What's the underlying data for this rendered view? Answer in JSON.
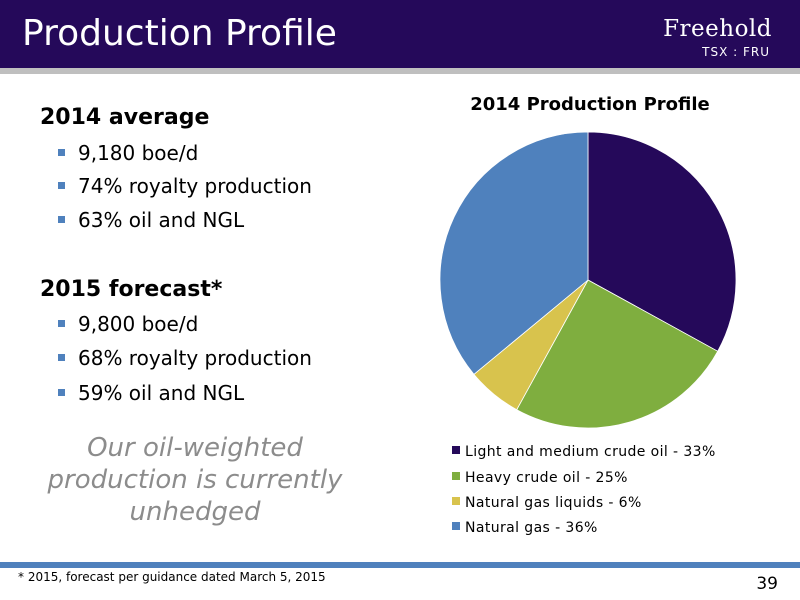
{
  "header": {
    "title": "Production Profile",
    "logo_name": "Freehold",
    "logo_ticker": "TSX : FRU",
    "background_color": "#25095a"
  },
  "left_panel": {
    "sections": [
      {
        "heading": "2014 average",
        "bullets": [
          "9,180 boe/d",
          "74% royalty production",
          "63% oil and NGL"
        ]
      },
      {
        "heading": "2015 forecast*",
        "bullets": [
          "9,800 boe/d",
          "68% royalty production",
          "59% oil and NGL"
        ]
      }
    ],
    "tagline": "Our oil-weighted production is currently unhedged"
  },
  "chart_data": {
    "type": "pie",
    "title": "2014 Production Profile",
    "categories": [
      "Light and medium crude oil",
      "Heavy crude oil",
      "Natural gas liquids",
      "Natural gas"
    ],
    "values": [
      33,
      25,
      6,
      36
    ],
    "colors": [
      "#25095a",
      "#7fae3f",
      "#d8c34d",
      "#4f81bd"
    ],
    "legend_labels": [
      "Light and medium crude oil - 33%",
      "Heavy crude oil - 25%",
      "Natural gas liquids - 6%",
      "Natural gas - 36%"
    ],
    "legend_position": "bottom"
  },
  "footer": {
    "footnote": "* 2015, forecast per guidance dated March 5, 2015",
    "page_number": "39"
  }
}
